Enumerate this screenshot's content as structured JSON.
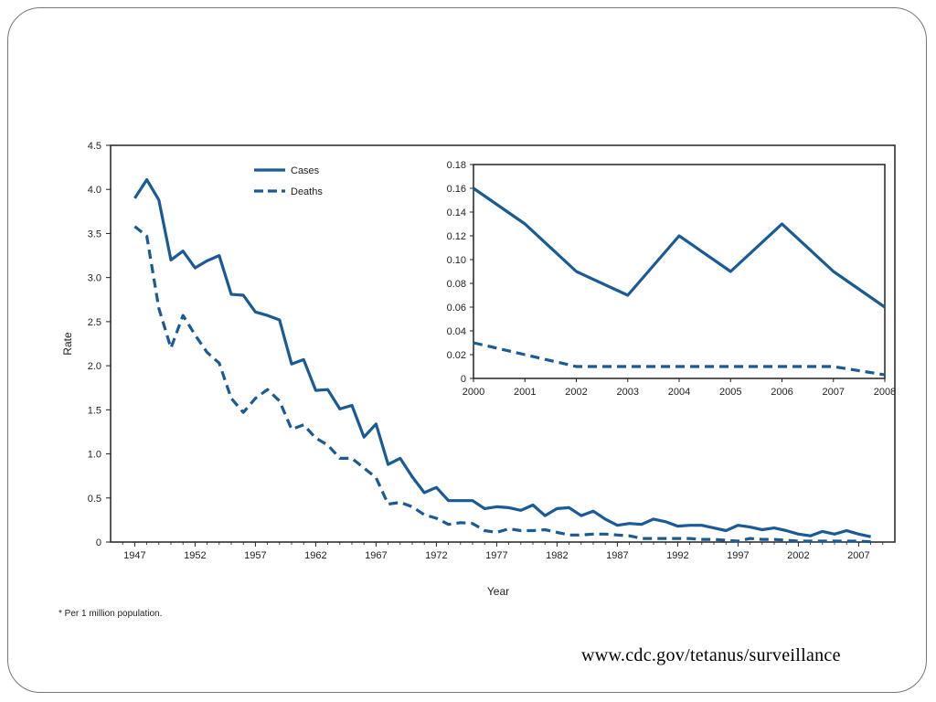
{
  "source_url": "www.cdc.gov/tetanus/surveillance",
  "footnote": "* Per 1 million population.",
  "colors": {
    "series": "#1a5a96",
    "frame": "#222222"
  },
  "chart_data": [
    {
      "id": "main",
      "type": "line",
      "title": "",
      "xlabel": "Year",
      "ylabel": "Rate",
      "xlim": [
        1945,
        2010
      ],
      "ylim": [
        0,
        4.5
      ],
      "x_ticks": [
        1947,
        1952,
        1957,
        1962,
        1967,
        1972,
        1977,
        1982,
        1987,
        1992,
        1997,
        2002,
        2007
      ],
      "y_ticks": [
        0,
        0.5,
        1.0,
        1.5,
        2.0,
        2.5,
        3.0,
        3.5,
        4.0,
        4.5
      ],
      "y_tick_labels": [
        "0",
        "0.5",
        "1.0",
        "1.5",
        "2.0",
        "2.5",
        "3.0",
        "3.5",
        "4.0",
        "4.5"
      ],
      "legend": {
        "position": "top-left"
      },
      "grid": false,
      "series": [
        {
          "name": "Cases",
          "style": "solid",
          "x": [
            1947,
            1948,
            1949,
            1950,
            1951,
            1952,
            1953,
            1954,
            1955,
            1956,
            1957,
            1958,
            1959,
            1960,
            1961,
            1962,
            1963,
            1964,
            1965,
            1966,
            1967,
            1968,
            1969,
            1970,
            1971,
            1972,
            1973,
            1974,
            1975,
            1976,
            1977,
            1978,
            1979,
            1980,
            1981,
            1982,
            1983,
            1984,
            1985,
            1986,
            1987,
            1988,
            1989,
            1990,
            1991,
            1992,
            1993,
            1994,
            1995,
            1996,
            1997,
            1998,
            1999,
            2000,
            2001,
            2002,
            2003,
            2004,
            2005,
            2006,
            2007,
            2008
          ],
          "y": [
            3.9,
            4.11,
            3.88,
            3.2,
            3.3,
            3.11,
            3.19,
            3.25,
            2.81,
            2.8,
            2.61,
            2.57,
            2.52,
            2.02,
            2.07,
            1.72,
            1.73,
            1.51,
            1.55,
            1.19,
            1.34,
            0.88,
            0.95,
            0.74,
            0.56,
            0.62,
            0.47,
            0.47,
            0.47,
            0.38,
            0.4,
            0.39,
            0.36,
            0.42,
            0.3,
            0.38,
            0.39,
            0.3,
            0.35,
            0.26,
            0.19,
            0.21,
            0.2,
            0.26,
            0.23,
            0.18,
            0.19,
            0.19,
            0.16,
            0.13,
            0.19,
            0.17,
            0.14,
            0.16,
            0.13,
            0.09,
            0.07,
            0.12,
            0.09,
            0.13,
            0.09,
            0.06
          ]
        },
        {
          "name": "Deaths",
          "style": "dashed",
          "x": [
            1947,
            1948,
            1949,
            1950,
            1951,
            1952,
            1953,
            1954,
            1955,
            1956,
            1957,
            1958,
            1959,
            1960,
            1961,
            1962,
            1963,
            1964,
            1965,
            1966,
            1967,
            1968,
            1969,
            1970,
            1971,
            1972,
            1973,
            1974,
            1975,
            1976,
            1977,
            1978,
            1979,
            1980,
            1981,
            1982,
            1983,
            1984,
            1985,
            1986,
            1987,
            1988,
            1989,
            1990,
            1991,
            1992,
            1993,
            1994,
            1995,
            1996,
            1997,
            1998,
            1999,
            2000,
            2001,
            2002,
            2003,
            2004,
            2005,
            2006,
            2007,
            2008
          ],
          "y": [
            3.58,
            3.47,
            2.65,
            2.2,
            2.57,
            2.35,
            2.15,
            2.03,
            1.63,
            1.47,
            1.63,
            1.73,
            1.6,
            1.28,
            1.33,
            1.18,
            1.1,
            0.95,
            0.95,
            0.84,
            0.73,
            0.43,
            0.45,
            0.4,
            0.31,
            0.27,
            0.2,
            0.22,
            0.21,
            0.13,
            0.11,
            0.15,
            0.13,
            0.13,
            0.14,
            0.11,
            0.08,
            0.08,
            0.09,
            0.09,
            0.08,
            0.07,
            0.04,
            0.04,
            0.04,
            0.04,
            0.04,
            0.03,
            0.03,
            0.02,
            0.01,
            0.04,
            0.03,
            0.03,
            0.02,
            0.01,
            0.01,
            0.01,
            0.01,
            0.01,
            0.01,
            0.003
          ]
        }
      ]
    },
    {
      "id": "inset",
      "type": "line",
      "title": "",
      "xlabel": "",
      "ylabel": "",
      "xlim": [
        2000,
        2008
      ],
      "ylim": [
        0,
        0.18
      ],
      "x_ticks": [
        2000,
        2001,
        2002,
        2003,
        2004,
        2005,
        2006,
        2007,
        2008
      ],
      "y_ticks": [
        0,
        0.02,
        0.04,
        0.06,
        0.08,
        0.1,
        0.12,
        0.14,
        0.16,
        0.18
      ],
      "y_tick_labels": [
        "0",
        "0.02",
        "0.04",
        "0.06",
        "0.08",
        "0.10",
        "0.12",
        "0.14",
        "0.16",
        "0.18"
      ],
      "grid": false,
      "series": [
        {
          "name": "Cases",
          "style": "solid",
          "x": [
            2000,
            2001,
            2002,
            2003,
            2004,
            2005,
            2006,
            2007,
            2008
          ],
          "y": [
            0.16,
            0.13,
            0.09,
            0.07,
            0.12,
            0.09,
            0.13,
            0.09,
            0.06
          ]
        },
        {
          "name": "Deaths",
          "style": "dashed",
          "x": [
            2000,
            2001,
            2002,
            2003,
            2004,
            2005,
            2006,
            2007,
            2008
          ],
          "y": [
            0.03,
            0.02,
            0.01,
            0.01,
            0.01,
            0.01,
            0.01,
            0.01,
            0.003
          ]
        }
      ]
    }
  ]
}
